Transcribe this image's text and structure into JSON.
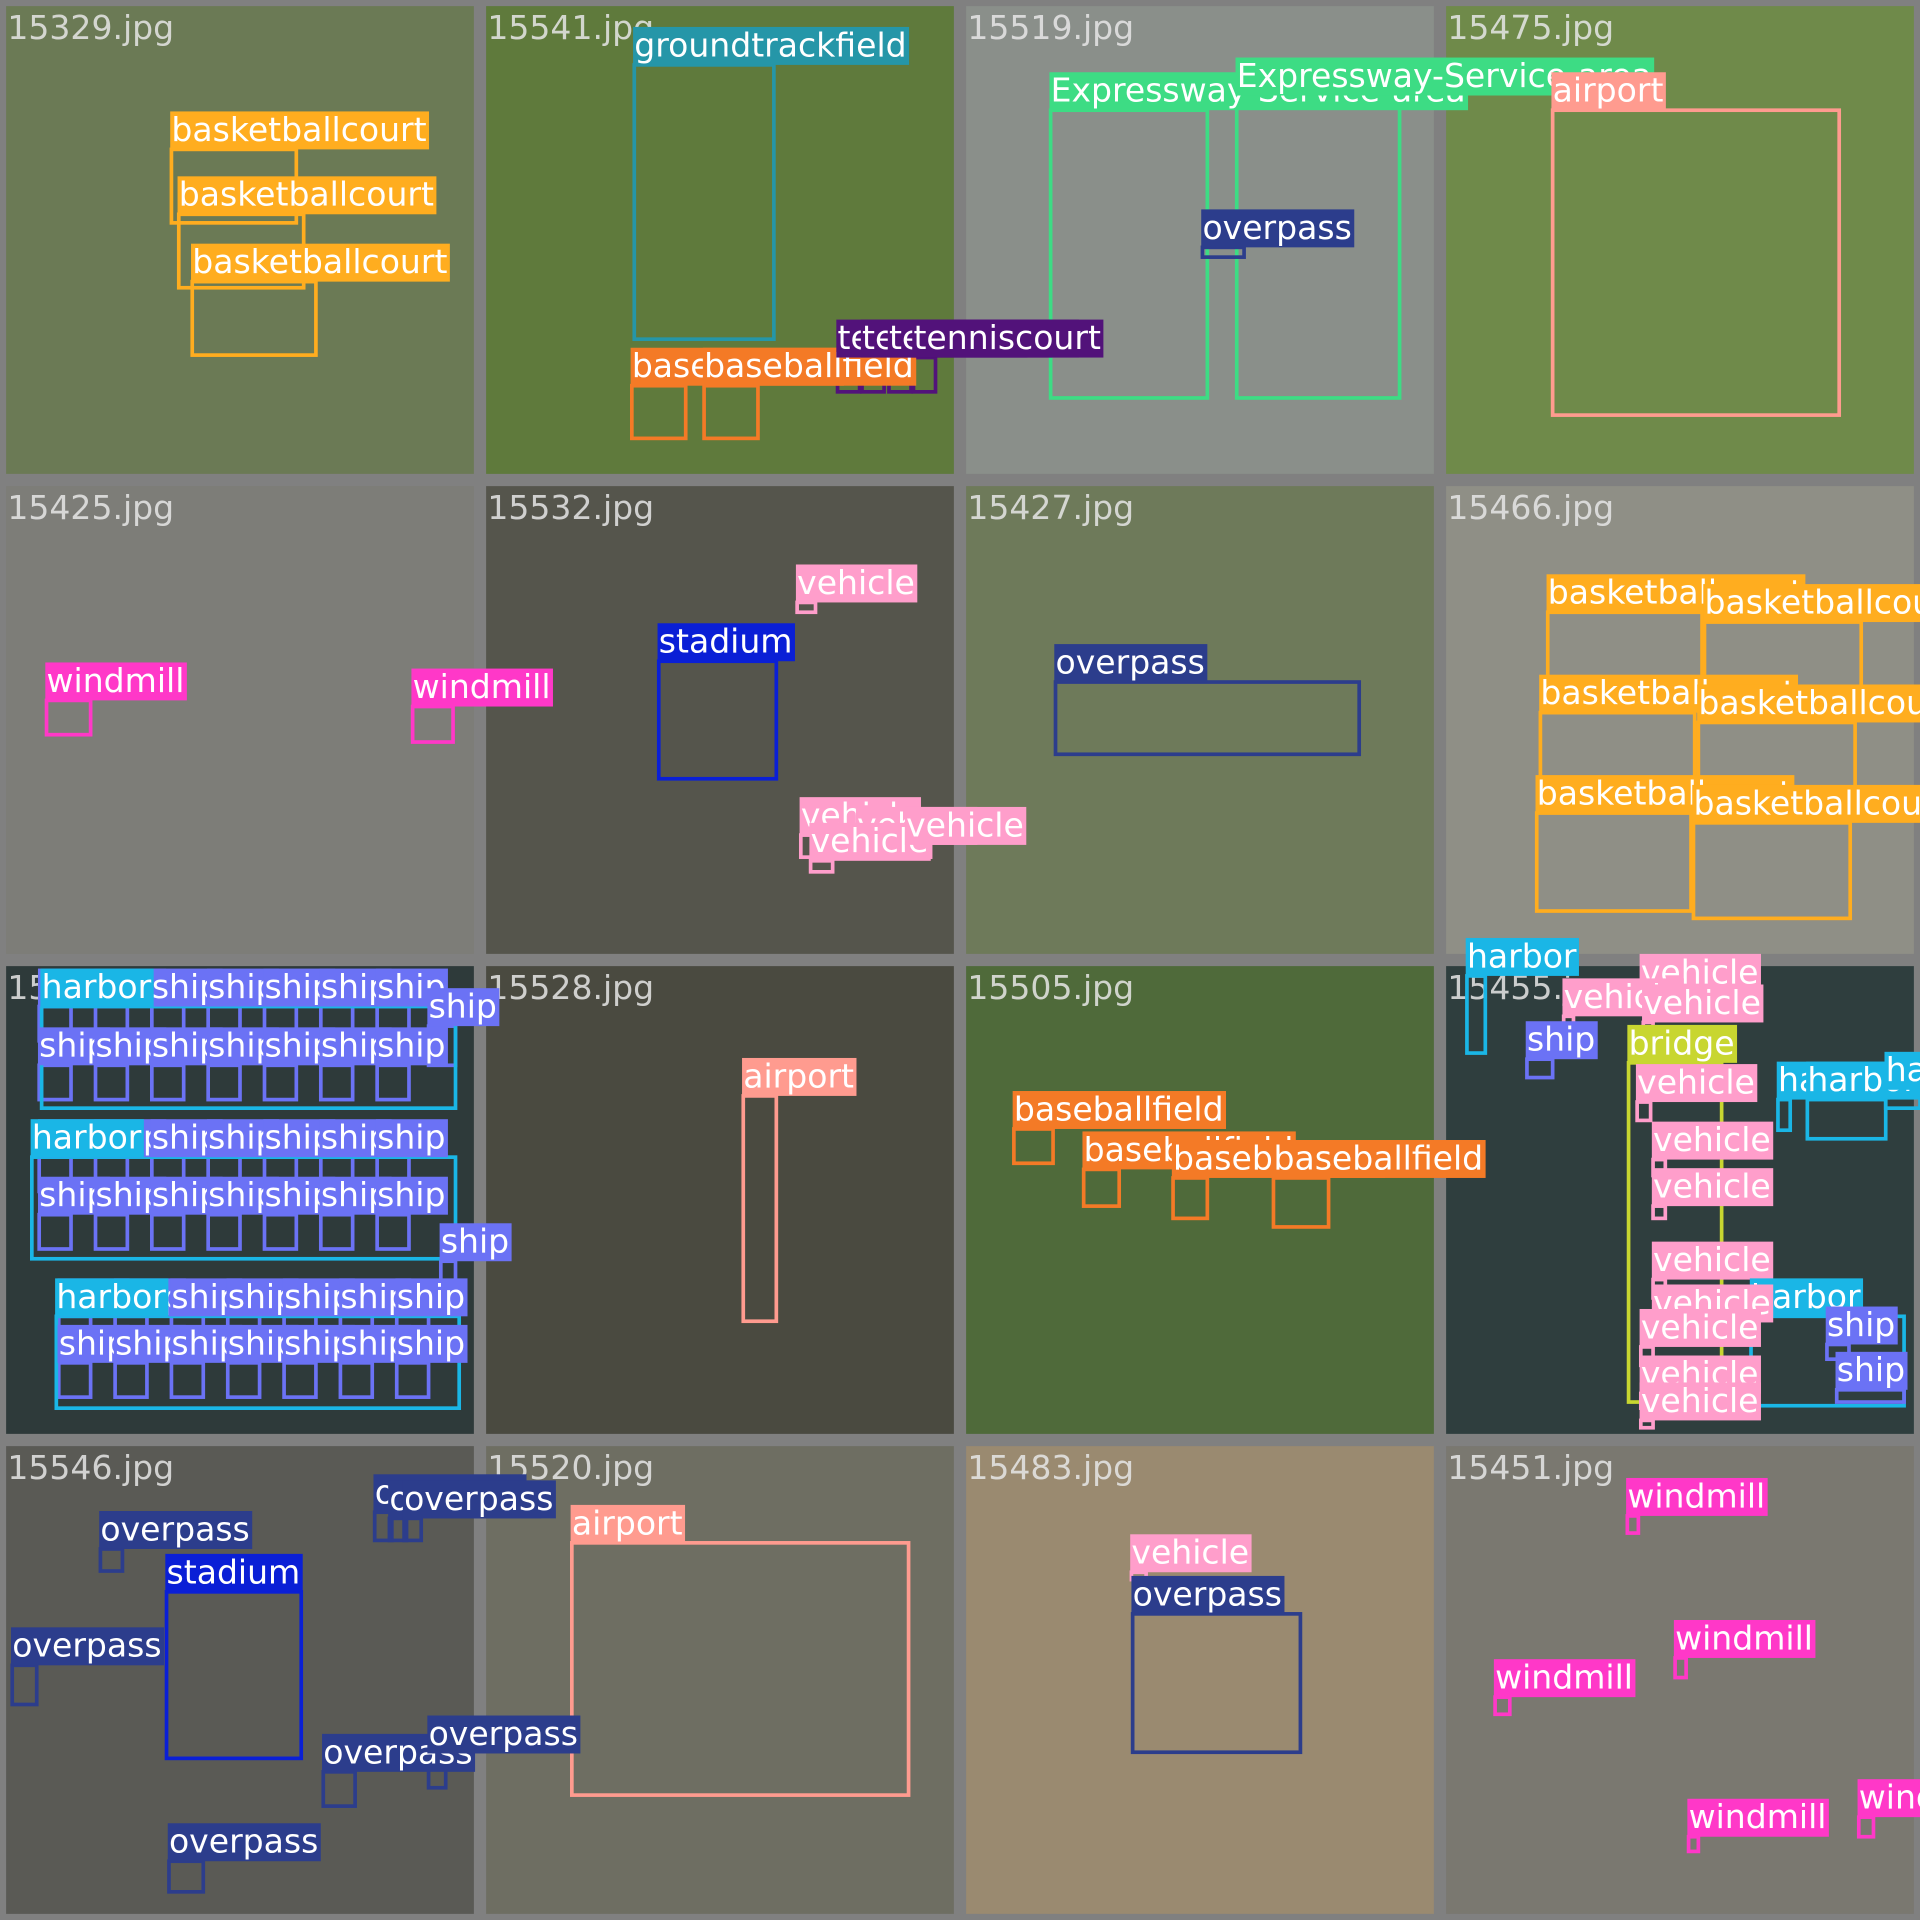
{
  "tiles": [
    {
      "filename": "15329.jpg",
      "boxes": [
        {
          "label": "basketballcourt",
          "color": "#ffad1f"
        },
        {
          "label": "basketballcourt",
          "color": "#ffad1f"
        },
        {
          "label": "basketballcourt",
          "color": "#ffad1f"
        }
      ]
    },
    {
      "filename": "15541.jpg",
      "boxes": [
        {
          "label": "groundtrackfield",
          "color": "#2596a8"
        },
        {
          "label": "baseballfield",
          "color": "#f47a26"
        },
        {
          "label": "baseballfield",
          "color": "#f47a26"
        },
        {
          "label": "tenniscourt",
          "color": "#52127a"
        },
        {
          "label": "tenniscourt",
          "color": "#52127a"
        },
        {
          "label": "tenniscourt",
          "color": "#52127a"
        },
        {
          "label": "tenniscourt",
          "color": "#52127a"
        }
      ]
    },
    {
      "filename": "15519.jpg",
      "boxes": [
        {
          "label": "Expressway-Service-area",
          "color": "#3ddc84"
        },
        {
          "label": "Expressway-Service-area",
          "color": "#3ddc84"
        },
        {
          "label": "overpass",
          "color": "#2c3d8c"
        }
      ]
    },
    {
      "filename": "15475.jpg",
      "boxes": [
        {
          "label": "airport",
          "color": "#ff9b8f"
        }
      ]
    },
    {
      "filename": "15425.jpg",
      "boxes": [
        {
          "label": "windmill",
          "color": "#ff38c8"
        },
        {
          "label": "windmill",
          "color": "#ff38c8"
        }
      ]
    },
    {
      "filename": "15532.jpg",
      "boxes": [
        {
          "label": "vehicle",
          "color": "#ff9ecb"
        },
        {
          "label": "stadium",
          "color": "#0a1fd6"
        },
        {
          "label": "vehicle",
          "color": "#ff9ecb"
        },
        {
          "label": "vehicle",
          "color": "#ff9ecb"
        },
        {
          "label": "vehicle",
          "color": "#ff9ecb"
        },
        {
          "label": "vehicle",
          "color": "#ff9ecb"
        }
      ]
    },
    {
      "filename": "15427.jpg",
      "boxes": [
        {
          "label": "overpass",
          "color": "#2c3d8c"
        }
      ]
    },
    {
      "filename": "15466.jpg",
      "boxes": [
        {
          "label": "basketballcourt",
          "color": "#ffad1f"
        },
        {
          "label": "basketballcourt",
          "color": "#ffad1f"
        },
        {
          "label": "basketballcourt",
          "color": "#ffad1f"
        },
        {
          "label": "basketballcourt",
          "color": "#ffad1f"
        },
        {
          "label": "basketballcourt",
          "color": "#ffad1f"
        },
        {
          "label": "basketballcourt",
          "color": "#ffad1f"
        }
      ]
    },
    {
      "filename": "15",
      "boxes": [
        {
          "label": "ship",
          "color": "#6b72f5"
        },
        {
          "label": "ship",
          "color": "#6b72f5"
        },
        {
          "label": "ship",
          "color": "#6b72f5"
        },
        {
          "label": "ship",
          "color": "#6b72f5"
        },
        {
          "label": "ship",
          "color": "#6b72f5"
        },
        {
          "label": "ship",
          "color": "#6b72f5"
        },
        {
          "label": "ship",
          "color": "#6b72f5"
        },
        {
          "label": "ship",
          "color": "#6b72f5"
        },
        {
          "label": "ship",
          "color": "#6b72f5"
        },
        {
          "label": "ship",
          "color": "#6b72f5"
        },
        {
          "label": "ship",
          "color": "#6b72f5"
        },
        {
          "label": "ship",
          "color": "#6b72f5"
        },
        {
          "label": "ship",
          "color": "#6b72f5"
        },
        {
          "label": "ship",
          "color": "#6b72f5"
        },
        {
          "label": "ship",
          "color": "#6b72f5"
        },
        {
          "label": "ship",
          "color": "#6b72f5"
        },
        {
          "label": "ship",
          "color": "#6b72f5"
        },
        {
          "label": "ship",
          "color": "#6b72f5"
        },
        {
          "label": "ship",
          "color": "#6b72f5"
        },
        {
          "label": "ship",
          "color": "#6b72f5"
        },
        {
          "label": "ship",
          "color": "#6b72f5"
        },
        {
          "label": "ship",
          "color": "#6b72f5"
        },
        {
          "label": "ship",
          "color": "#6b72f5"
        },
        {
          "label": "ship",
          "color": "#6b72f5"
        },
        {
          "label": "ship",
          "color": "#6b72f5"
        },
        {
          "label": "ship",
          "color": "#6b72f5"
        },
        {
          "label": "ship",
          "color": "#6b72f5"
        },
        {
          "label": "ship",
          "color": "#6b72f5"
        },
        {
          "label": "ship",
          "color": "#6b72f5"
        },
        {
          "label": "ship",
          "color": "#6b72f5"
        },
        {
          "label": "ship",
          "color": "#6b72f5"
        },
        {
          "label": "ship",
          "color": "#6b72f5"
        },
        {
          "label": "ship",
          "color": "#6b72f5"
        },
        {
          "label": "ship",
          "color": "#6b72f5"
        },
        {
          "label": "ship",
          "color": "#6b72f5"
        },
        {
          "label": "ship",
          "color": "#6b72f5"
        },
        {
          "label": "ship",
          "color": "#6b72f5"
        },
        {
          "label": "ship",
          "color": "#6b72f5"
        },
        {
          "label": "ship",
          "color": "#6b72f5"
        },
        {
          "label": "ship",
          "color": "#6b72f5"
        },
        {
          "label": "ship",
          "color": "#6b72f5"
        },
        {
          "label": "ship",
          "color": "#6b72f5"
        },
        {
          "label": "ship",
          "color": "#6b72f5"
        },
        {
          "label": "ship",
          "color": "#6b72f5"
        },
        {
          "label": "harbor",
          "color": "#1ab6e6"
        },
        {
          "label": "harbor",
          "color": "#1ab6e6"
        },
        {
          "label": "harbor",
          "color": "#1ab6e6"
        }
      ]
    },
    {
      "filename": "15528.jpg",
      "boxes": [
        {
          "label": "airport",
          "color": "#ff9b8f"
        }
      ]
    },
    {
      "filename": "15505.jpg",
      "boxes": [
        {
          "label": "baseballfield",
          "color": "#f47a26"
        },
        {
          "label": "baseballfield",
          "color": "#f47a26"
        },
        {
          "label": "baseballfield",
          "color": "#f47a26"
        },
        {
          "label": "baseballfield",
          "color": "#f47a26"
        }
      ]
    },
    {
      "filename": "15455.jpg",
      "boxes": [
        {
          "label": "harbor",
          "color": "#1ab6e6"
        },
        {
          "label": "vehicle",
          "color": "#ff9ecb"
        },
        {
          "label": "vehicle",
          "color": "#ff9ecb"
        },
        {
          "label": "vehicle",
          "color": "#ff9ecb"
        },
        {
          "label": "ship",
          "color": "#6b72f5"
        },
        {
          "label": "bridge",
          "color": "#c8d630"
        },
        {
          "label": "vehicle",
          "color": "#ff9ecb"
        },
        {
          "label": "harbor",
          "color": "#1ab6e6"
        },
        {
          "label": "harbor",
          "color": "#1ab6e6"
        },
        {
          "label": "harbor",
          "color": "#1ab6e6"
        },
        {
          "label": "vehicle",
          "color": "#ff9ecb"
        },
        {
          "label": "vehicle",
          "color": "#ff9ecb"
        },
        {
          "label": "vehicle",
          "color": "#ff9ecb"
        },
        {
          "label": "harbor",
          "color": "#1ab6e6"
        },
        {
          "label": "vehicle",
          "color": "#ff9ecb"
        },
        {
          "label": "vehicle",
          "color": "#ff9ecb"
        },
        {
          "label": "ship",
          "color": "#6b72f5"
        },
        {
          "label": "ship",
          "color": "#6b72f5"
        },
        {
          "label": "vehicle",
          "color": "#ff9ecb"
        },
        {
          "label": "vehicle",
          "color": "#ff9ecb"
        }
      ]
    },
    {
      "filename": "15546.jpg",
      "boxes": [
        {
          "label": "overpass",
          "color": "#2c3d8c"
        },
        {
          "label": "stadium",
          "color": "#0a1fd6"
        },
        {
          "label": "overpass",
          "color": "#2c3d8c"
        },
        {
          "label": "overpass",
          "color": "#2c3d8c"
        },
        {
          "label": "overpass",
          "color": "#2c3d8c"
        },
        {
          "label": "overpass",
          "color": "#2c3d8c"
        },
        {
          "label": "overpass",
          "color": "#2c3d8c"
        },
        {
          "label": "overpass",
          "color": "#2c3d8c"
        },
        {
          "label": "overpass",
          "color": "#2c3d8c"
        }
      ]
    },
    {
      "filename": "15520.jpg",
      "boxes": [
        {
          "label": "airport",
          "color": "#ff9b8f"
        }
      ]
    },
    {
      "filename": "15483.jpg",
      "boxes": [
        {
          "label": "vehicle",
          "color": "#ff9ecb"
        },
        {
          "label": "overpass",
          "color": "#2c3d8c"
        }
      ]
    },
    {
      "filename": "15451.jpg",
      "boxes": [
        {
          "label": "windmill",
          "color": "#ff38c8"
        },
        {
          "label": "windmill",
          "color": "#ff38c8"
        },
        {
          "label": "windmill",
          "color": "#ff38c8"
        },
        {
          "label": "windmill",
          "color": "#ff38c8"
        },
        {
          "label": "windmill",
          "color": "#ff38c8"
        }
      ]
    }
  ]
}
